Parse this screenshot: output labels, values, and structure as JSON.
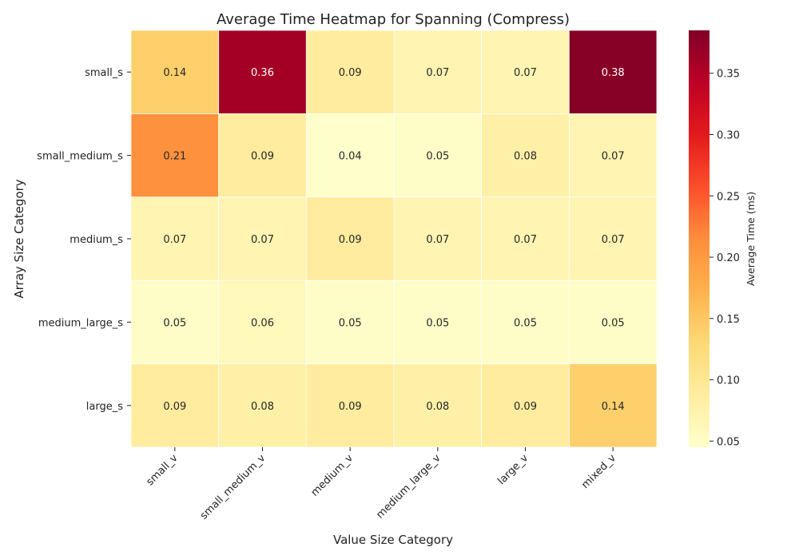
{
  "chart_data": {
    "type": "heatmap",
    "title": "Average Time Heatmap for Spanning (Compress)",
    "xlabel": "Value Size Category",
    "ylabel": "Array Size Category",
    "x_categories": [
      "small_v",
      "small_medium_v",
      "medium_v",
      "medium_large_v",
      "large_v",
      "mixed_v"
    ],
    "y_categories": [
      "small_s",
      "small_medium_s",
      "medium_s",
      "medium_large_s",
      "large_s"
    ],
    "values": [
      [
        0.14,
        0.36,
        0.09,
        0.07,
        0.07,
        0.38
      ],
      [
        0.21,
        0.09,
        0.04,
        0.05,
        0.08,
        0.07
      ],
      [
        0.07,
        0.07,
        0.09,
        0.07,
        0.07,
        0.07
      ],
      [
        0.05,
        0.06,
        0.05,
        0.05,
        0.05,
        0.05
      ],
      [
        0.09,
        0.08,
        0.09,
        0.08,
        0.09,
        0.14
      ]
    ],
    "value_format_decimals": 2,
    "colormap": "YlOrRd",
    "vmin": 0.045,
    "vmax": 0.385,
    "colorbar": {
      "label": "Average Time (ms)",
      "ticks": [
        "0.05",
        "0.10",
        "0.15",
        "0.20",
        "0.25",
        "0.30",
        "0.35"
      ],
      "tick_values": [
        0.05,
        0.1,
        0.15,
        0.2,
        0.25,
        0.3,
        0.35
      ]
    },
    "grid": false
  }
}
